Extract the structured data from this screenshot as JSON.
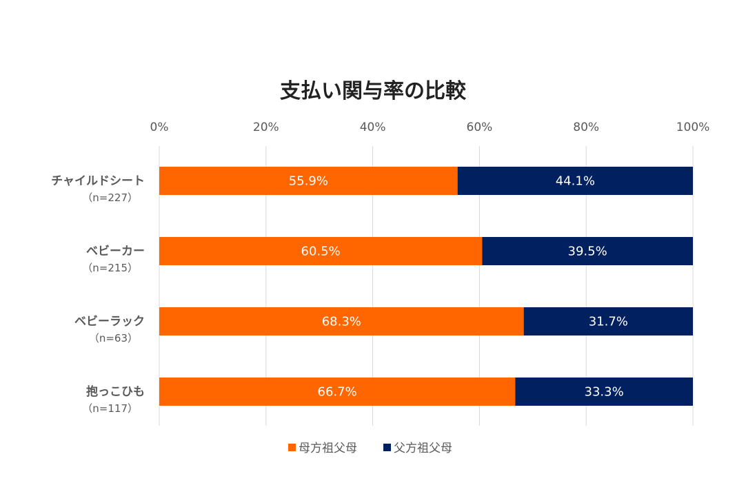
{
  "chart_data": {
    "type": "bar",
    "orientation": "horizontal",
    "stacked": "percent",
    "title": "支払い関与率の比較",
    "categories": [
      "チャイルドシート",
      "ベビーカー",
      "ベビーラック",
      "抱っこひも"
    ],
    "category_sublabels": [
      "（n=227）",
      "（n=215）",
      "（n=63）",
      "（n=117）"
    ],
    "series": [
      {
        "name": "母方祖父母",
        "values": [
          55.9,
          60.5,
          68.3,
          66.7
        ],
        "labels": [
          "55.9%",
          "60.5%",
          "68.3%",
          "66.7%"
        ],
        "color": "#FF6600"
      },
      {
        "name": "父方祖父母",
        "values": [
          44.1,
          39.5,
          31.7,
          33.3
        ],
        "labels": [
          "44.1%",
          "39.5%",
          "31.7%",
          "33.3%"
        ],
        "color": "#002060"
      }
    ],
    "xlim": [
      0,
      100
    ],
    "xticks": [
      "0%",
      "20%",
      "40%",
      "60%",
      "80%",
      "100%"
    ],
    "xtick_values": [
      0,
      20,
      40,
      60,
      80,
      100
    ],
    "grid": true,
    "xaxis_position": "top",
    "legend": "bottom"
  }
}
